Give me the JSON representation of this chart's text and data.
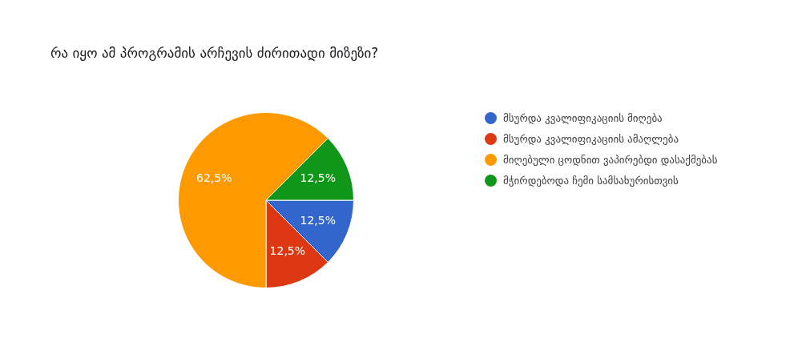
{
  "chart_data": {
    "type": "pie",
    "title": "რა იყო ამ პროგრამის არჩევის ძირითადი მიზეზი?",
    "categories": [
      "მსურდა კვალიფიკაციის მიღება",
      "მსურდა კვალიფიკაციის ამაღლება",
      "მიღებული ცოდნით ვაპირებდი დასაქმებას",
      "მჭირდებოდა ჩემი სამსახურისთვის"
    ],
    "values": [
      12.5,
      12.5,
      62.5,
      12.5
    ],
    "colors": [
      "#3366cc",
      "#dc3912",
      "#ff9900",
      "#109618"
    ],
    "value_labels": [
      "12,5%",
      "12,5%",
      "62,5%",
      "12,5%"
    ],
    "legend": "right"
  }
}
